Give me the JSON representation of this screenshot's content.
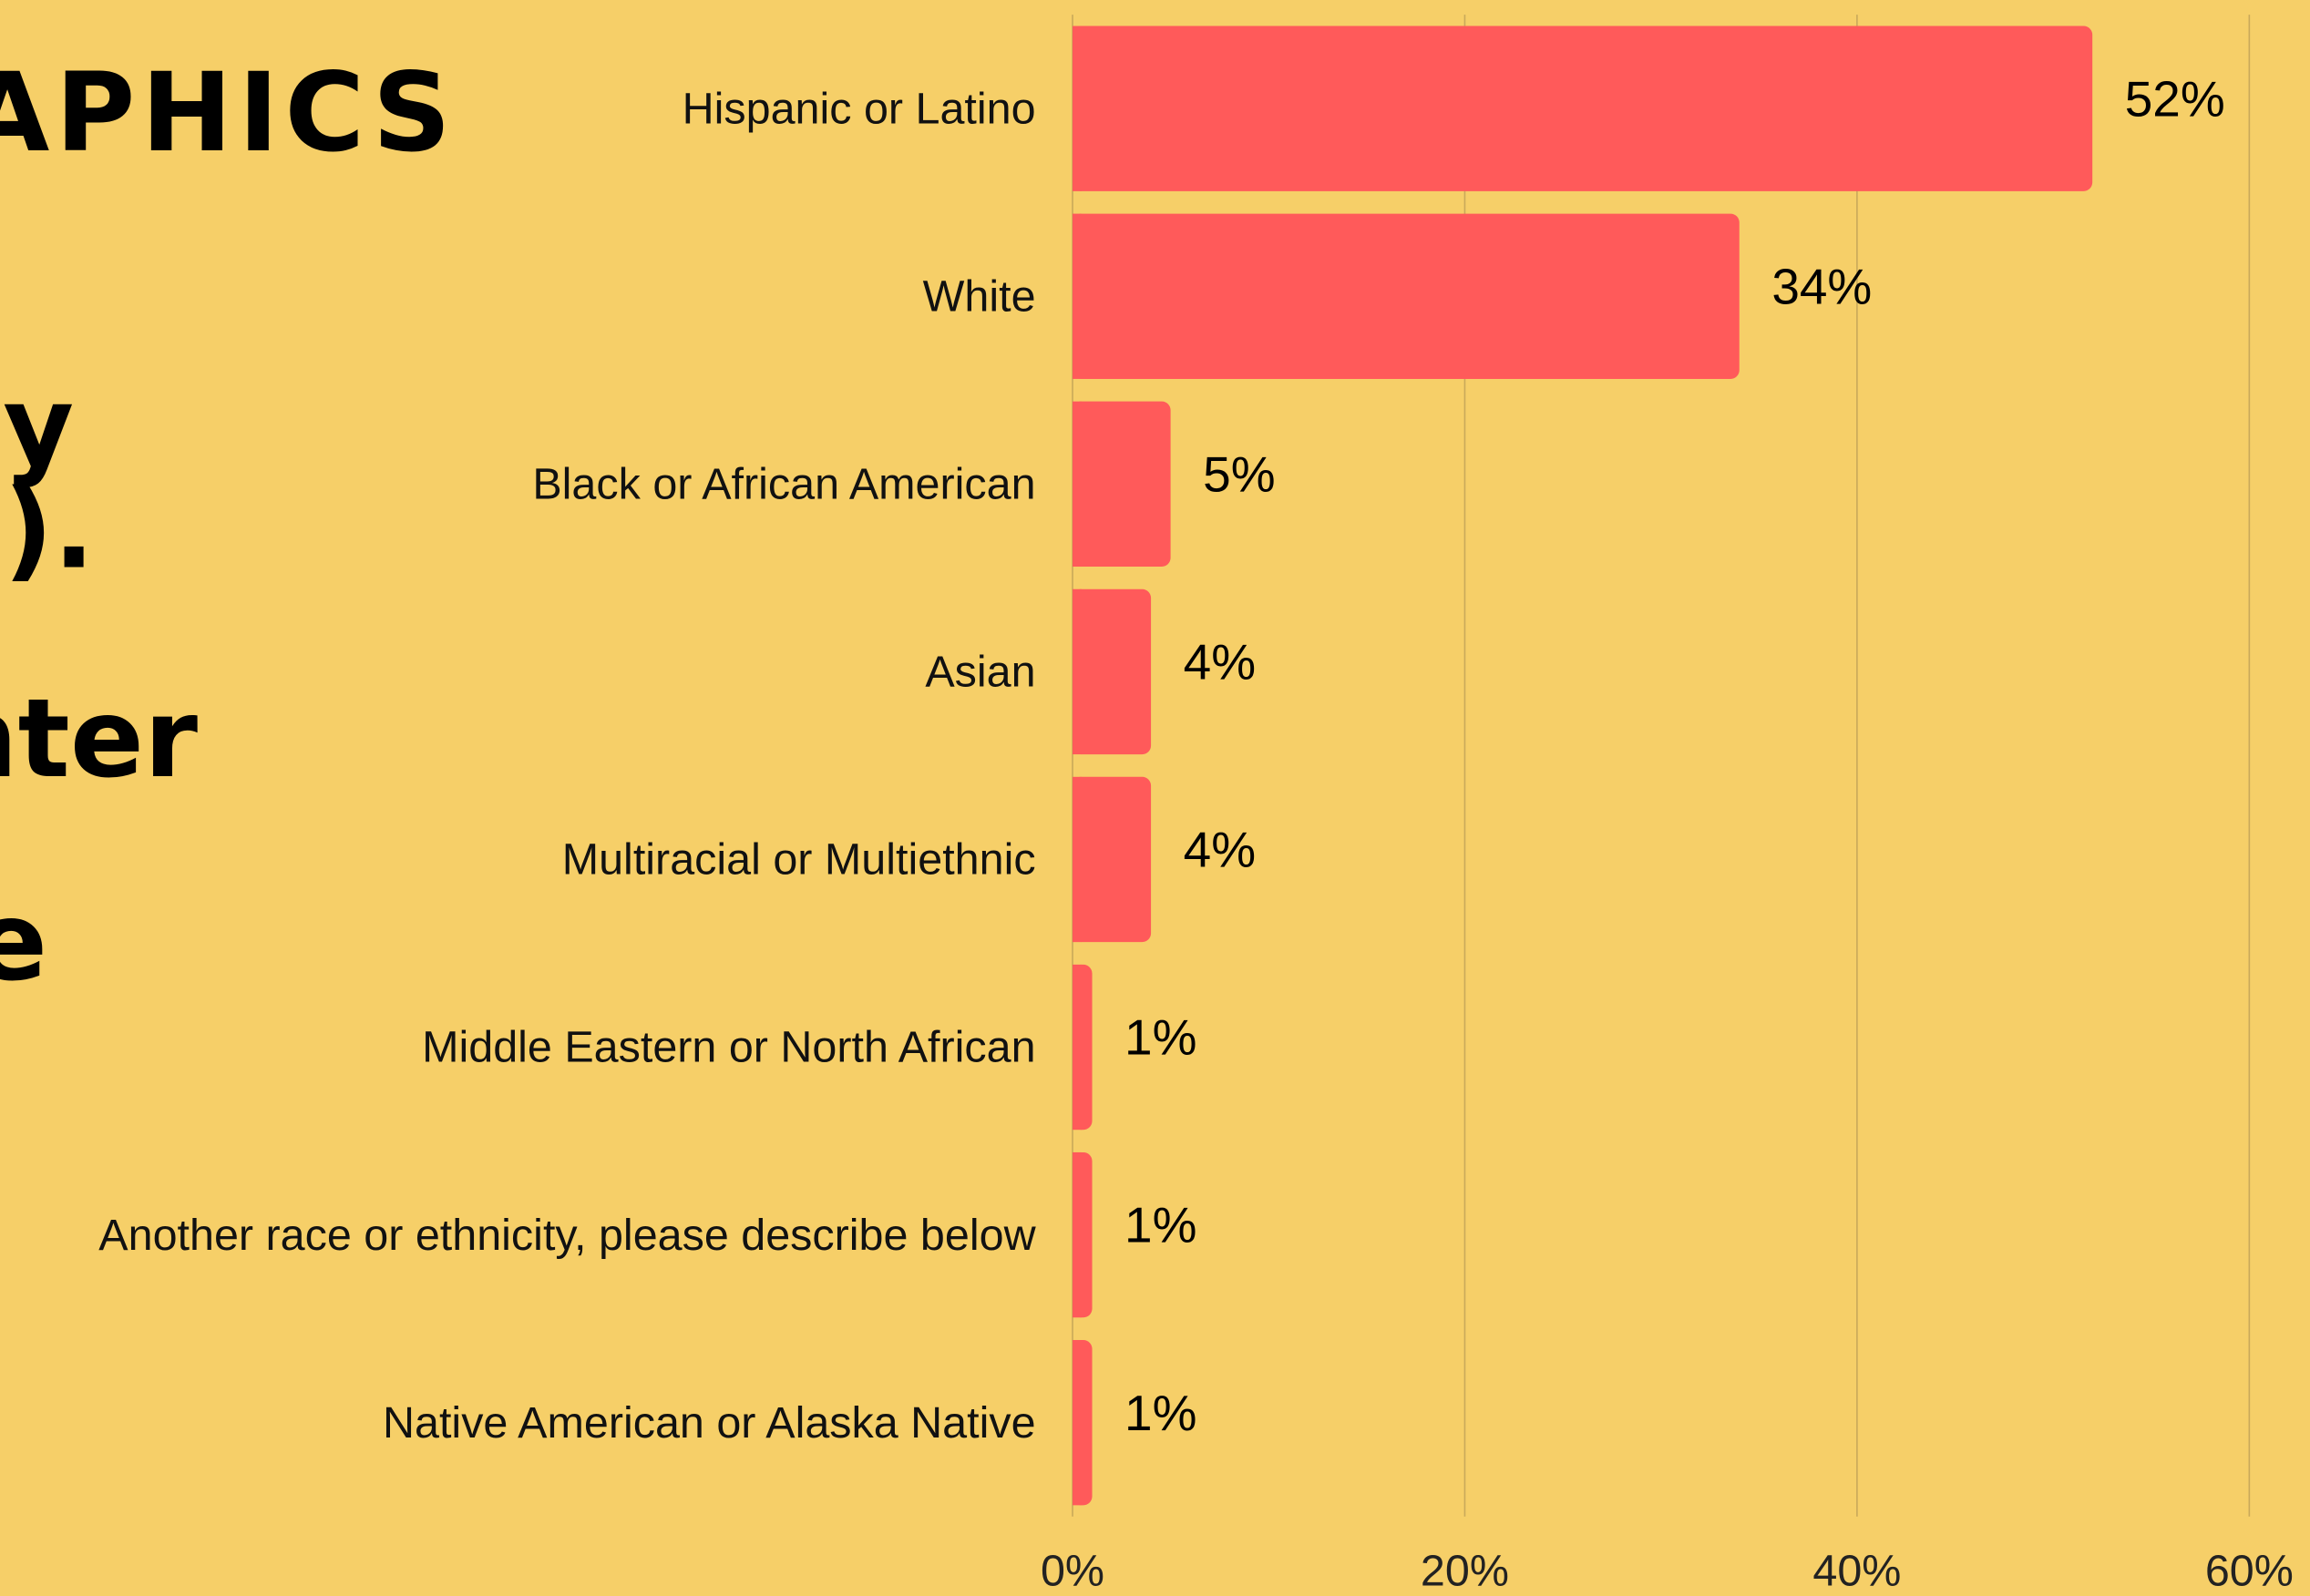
{
  "header_fragments": [
    "APHICS",
    "ey",
    "n).",
    "enter",
    "e"
  ],
  "chart_data": {
    "type": "bar",
    "orientation": "horizontal",
    "categories": [
      "Hispanic or Latino",
      "White",
      "Black or African American",
      "Asian",
      "Multiracial or Multiethnic",
      "Middle Eastern or North African",
      "Another race or ethnicity, please describe below",
      "Native American or Alaska Native"
    ],
    "values": [
      52,
      34,
      5,
      4,
      4,
      1,
      1,
      1
    ],
    "value_labels": [
      "52%",
      "34%",
      "5%",
      "4%",
      "4%",
      "1%",
      "1%",
      "1%"
    ],
    "color": "#ff5a5a",
    "xlim": [
      0,
      60
    ],
    "xticks": [
      {
        "value": 0,
        "label": "0%"
      },
      {
        "value": 20,
        "label": "20%"
      },
      {
        "value": 40,
        "label": "40%"
      },
      {
        "value": 60,
        "label": "60%"
      }
    ],
    "grid": true
  }
}
